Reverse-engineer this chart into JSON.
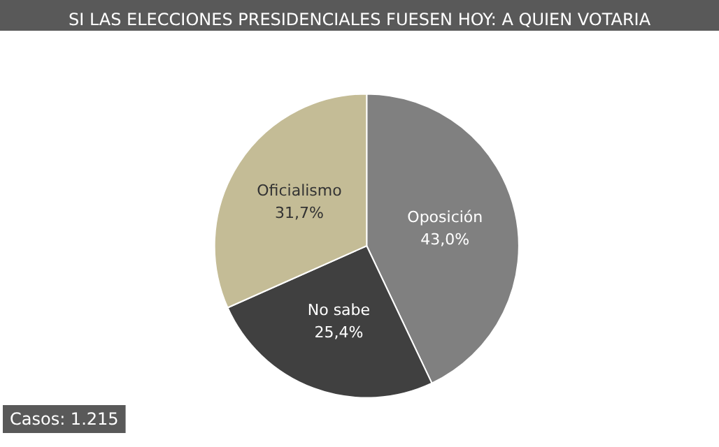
{
  "chart_data": {
    "type": "pie",
    "title": "SI LAS ELECCIONES PRESIDENCIALES FUESEN HOY: A QUIEN VOTARIA",
    "categories": [
      "Oposición",
      "No sabe",
      "Oficialismo"
    ],
    "values": [
      43.0,
      25.4,
      31.7
    ],
    "value_labels": [
      "43,0%",
      "25,4%",
      "31,7%"
    ],
    "colors": [
      "#808080",
      "#404040",
      "#c4bc96"
    ],
    "annotations": [
      "Casos: 1.215"
    ],
    "legend": false
  }
}
